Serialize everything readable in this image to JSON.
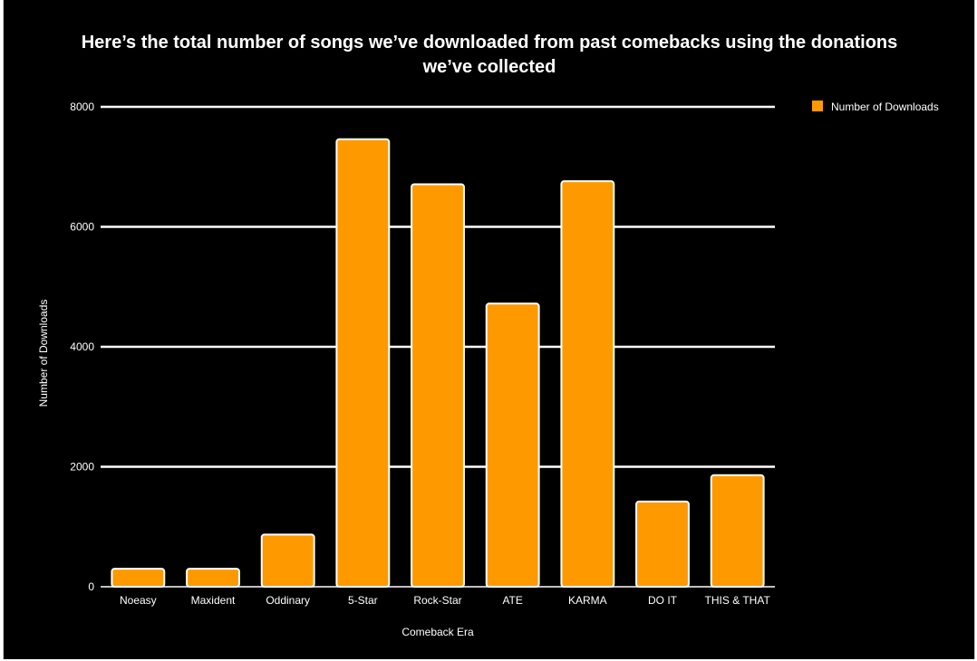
{
  "chart_data": {
    "type": "bar",
    "title_lines": [
      "Here’s the total number of songs we’ve downloaded from past comebacks using the donations",
      "we’ve collected"
    ],
    "xlabel": "Comeback Era",
    "ylabel": "Number of Downloads",
    "ylim": [
      0,
      8000
    ],
    "yticks": [
      0,
      2000,
      4000,
      6000,
      8000
    ],
    "categories": [
      "Noeasy",
      "Maxident",
      "Oddinary",
      "5-Star",
      "Rock-Star",
      "ATE",
      "KARMA",
      "DO IT",
      "THIS & THAT"
    ],
    "series": [
      {
        "name": "Number of Downloads",
        "values": [
          300,
          300,
          870,
          7460,
          6710,
          4720,
          6760,
          1420,
          1860
        ]
      }
    ],
    "colors": {
      "bar": "#ff9900",
      "bar_outline": "#ffffff",
      "grid": "#ffffff",
      "background": "#000000"
    },
    "grid": true,
    "legend_position": "top-right"
  }
}
